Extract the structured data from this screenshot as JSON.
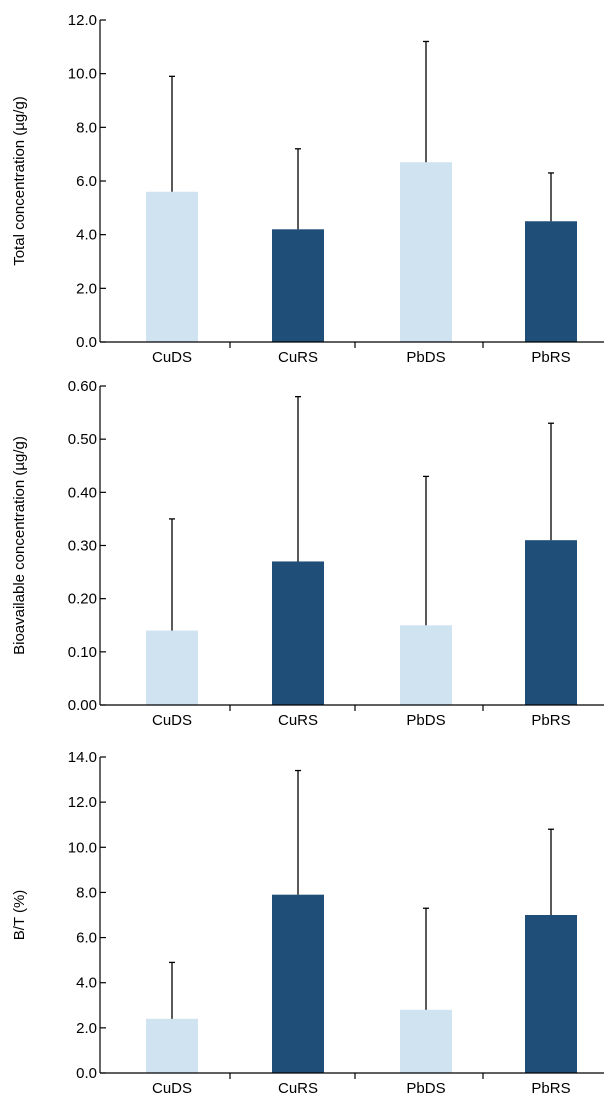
{
  "colors": {
    "ds": "#cfe3f1",
    "rs": "#1f4e79",
    "axis": "#000000",
    "error_bar": "#000000"
  },
  "chart_data": [
    {
      "type": "bar",
      "ylabel": "Total concentration (µg/g)",
      "ylim": [
        0,
        12
      ],
      "yticks": [
        "0.0",
        "2.0",
        "4.0",
        "6.0",
        "8.0",
        "10.0",
        "12.0"
      ],
      "categories": [
        "CuDS",
        "CuRS",
        "PbDS",
        "PbRS"
      ],
      "values": [
        5.6,
        4.2,
        6.7,
        4.5
      ],
      "error_upper": [
        9.9,
        7.2,
        11.2,
        6.3
      ],
      "bar_colors": [
        "ds",
        "rs",
        "ds",
        "rs"
      ]
    },
    {
      "type": "bar",
      "ylabel": "Bioavailable concentration (µg/g)",
      "ylim": [
        0,
        0.6
      ],
      "yticks": [
        "0.00",
        "0.10",
        "0.20",
        "0.30",
        "0.40",
        "0.50",
        "0.60"
      ],
      "categories": [
        "CuDS",
        "CuRS",
        "PbDS",
        "PbRS"
      ],
      "values": [
        0.14,
        0.27,
        0.15,
        0.31
      ],
      "error_upper": [
        0.35,
        0.58,
        0.43,
        0.53
      ],
      "bar_colors": [
        "ds",
        "rs",
        "ds",
        "rs"
      ]
    },
    {
      "type": "bar",
      "ylabel": "B/T (%)",
      "ylim": [
        0,
        14
      ],
      "yticks": [
        "0.0",
        "2.0",
        "4.0",
        "6.0",
        "8.0",
        "10.0",
        "12.0",
        "14.0"
      ],
      "categories": [
        "CuDS",
        "CuRS",
        "PbDS",
        "PbRS"
      ],
      "values": [
        2.4,
        7.9,
        2.8,
        7.0
      ],
      "error_upper": [
        4.9,
        13.4,
        7.3,
        10.8
      ],
      "bar_colors": [
        "ds",
        "rs",
        "ds",
        "rs"
      ]
    }
  ]
}
